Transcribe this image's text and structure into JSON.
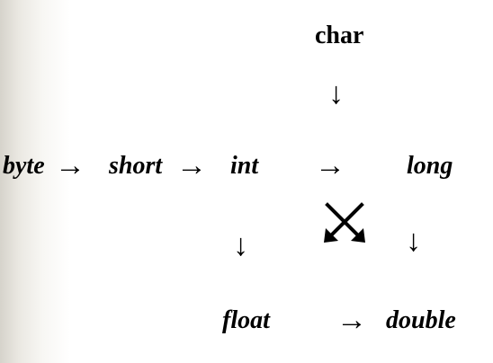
{
  "nodes": {
    "char": "char",
    "byte": "byte",
    "short": "short",
    "int": "int",
    "long": "long",
    "float": "float",
    "double": "double"
  },
  "arrows": {
    "right": "→",
    "down": "↓"
  },
  "colors": {
    "text": "#000000",
    "background": "#ffffff",
    "edge_shadow": "#d6d3cb"
  },
  "icons": {
    "crossed_arrows": "crossed-diagonal-arrows-icon"
  }
}
